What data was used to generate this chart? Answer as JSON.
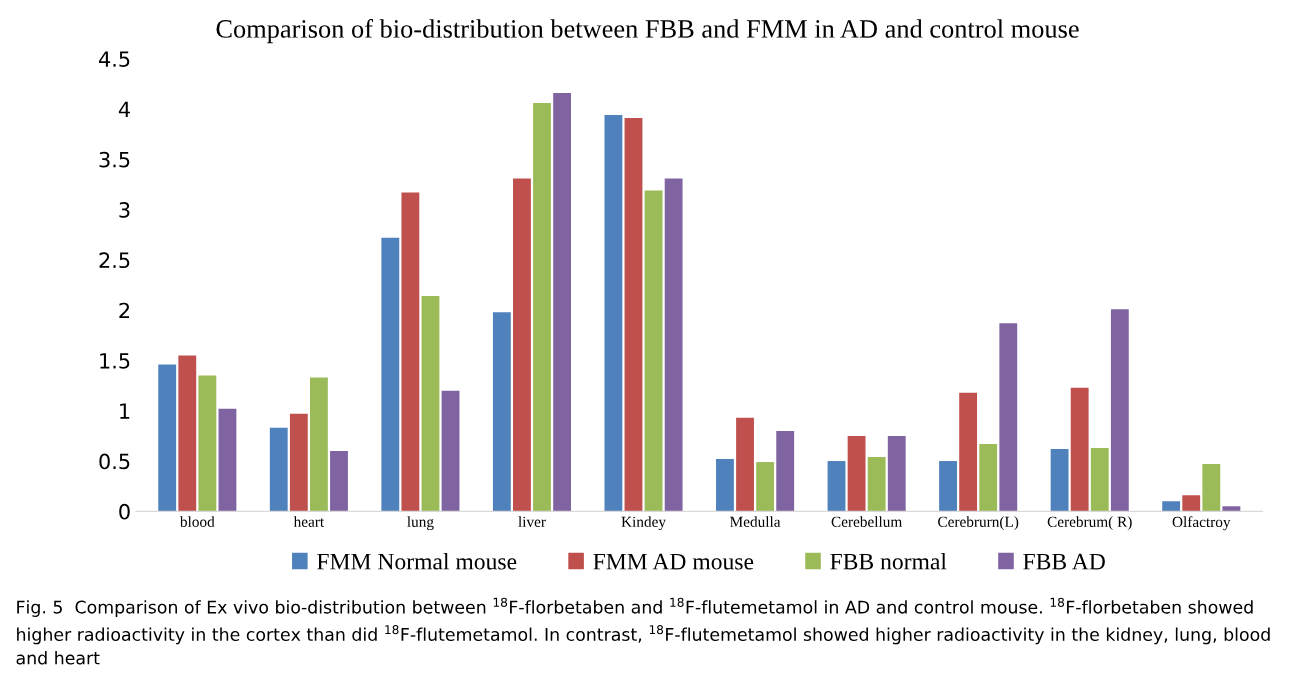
{
  "chart_data": {
    "type": "bar",
    "title": "Comparison of bio-distribution between FBB and FMM in AD and control mouse",
    "categories": [
      "blood",
      "heart",
      "lung",
      "liver",
      "Kindey",
      "Medulla",
      "Cerebellum",
      "Cerebrurn(L)",
      "Cerebrum( R)",
      "Olfactroy"
    ],
    "series": [
      {
        "name": "FMM Normal mouse",
        "color": "#4f81bd",
        "values": [
          1.46,
          0.83,
          2.72,
          1.98,
          3.94,
          0.52,
          0.5,
          0.5,
          0.62,
          0.1
        ]
      },
      {
        "name": "FMM AD mouse",
        "color": "#c0504d",
        "values": [
          1.55,
          0.97,
          3.17,
          3.31,
          3.91,
          0.93,
          0.75,
          1.18,
          1.23,
          0.16
        ]
      },
      {
        "name": "FBB normal",
        "color": "#9bbb59",
        "values": [
          1.35,
          1.33,
          2.14,
          4.06,
          3.19,
          0.49,
          0.54,
          0.67,
          0.63,
          0.47
        ]
      },
      {
        "name": "FBB AD",
        "color": "#8064a2",
        "values": [
          1.02,
          0.6,
          1.2,
          4.16,
          3.31,
          0.8,
          0.75,
          1.87,
          2.01,
          0.05
        ]
      }
    ],
    "ylim": [
      0,
      4.5
    ],
    "yticks": [
      0,
      0.5,
      1,
      1.5,
      2,
      2.5,
      3,
      3.5,
      4,
      4.5
    ],
    "grid": false,
    "legend": "bottom",
    "annotations": [
      "Fig. 5  Comparison of Ex vivo bio-distribution between $^{18}$F-florbetaben and $^{18}$F-flutemetamol in AD and control mouse. $^{18}$F-florbetaben showed higher radioactivity in the cortex than did $^{18}$F-flutemetamol. In contrast, $^{18}$F-flutemetamol showed higher radioactivity in the kidney, lung, blood and heart"
    ]
  }
}
